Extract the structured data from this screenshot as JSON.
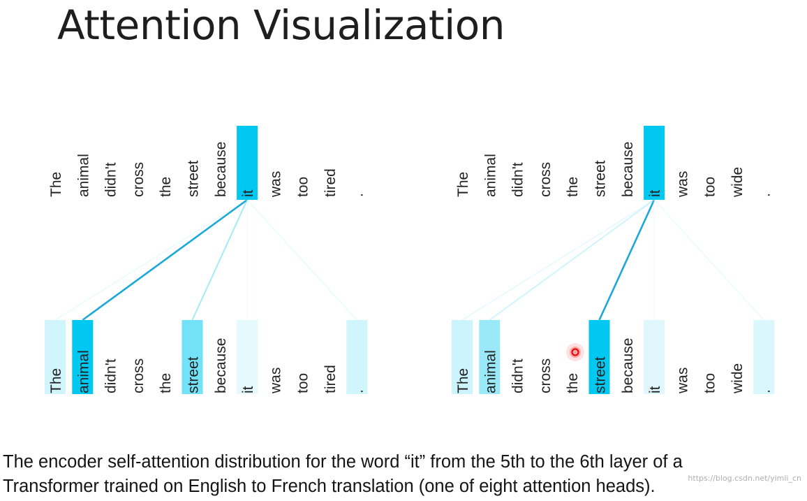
{
  "title": "Attention Visualization",
  "caption": {
    "line1": "The encoder self-attention distribution for the word “it” from the 5th to the 6th layer of a",
    "line2": "Transformer trained on English to French translation (one of eight attention heads)."
  },
  "watermark": "https://blog.csdn.net/yimli_cn",
  "colors": {
    "strong": "#00c8f0",
    "text": "#222222"
  },
  "panels": [
    {
      "query_word": "it",
      "tokens": [
        "The",
        "animal",
        "didn't",
        "cross",
        "the",
        "street",
        "because",
        "it",
        "was",
        "too",
        "tired",
        "."
      ],
      "top_highlight_index": 7,
      "attention": [
        0.18,
        1.0,
        0,
        0,
        0,
        0.55,
        0,
        0.1,
        0,
        0,
        0,
        0.18
      ]
    },
    {
      "query_word": "it",
      "tokens": [
        "The",
        "animal",
        "didn't",
        "cross",
        "the",
        "street",
        "because",
        "it",
        "was",
        "too",
        "wide",
        "."
      ],
      "top_highlight_index": 7,
      "attention": [
        0.2,
        0.4,
        0,
        0,
        0,
        1.0,
        0,
        0.12,
        0,
        0,
        0,
        0.15
      ]
    }
  ]
}
